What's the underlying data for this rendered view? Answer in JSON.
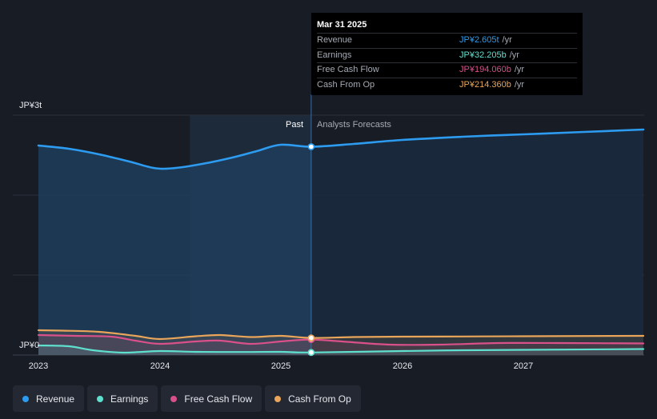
{
  "chart_data": {
    "type": "area",
    "title": "",
    "ylabel": "",
    "xlabel": "",
    "ylim": [
      0,
      3000
    ],
    "y_ticks": [
      "JP¥3t",
      "JP¥0"
    ],
    "x_tick_labels": [
      "2023",
      "2024",
      "2025",
      "2026",
      "2027"
    ],
    "divider_x": 2025.25,
    "highlight_start_x": 2024.25,
    "past_label": "Past",
    "forecast_label": "Analysts Forecasts",
    "series": [
      {
        "name": "Revenue",
        "unit": "JP¥ billions",
        "color": "#2d9cf0",
        "points": [
          [
            2023.0,
            2620
          ],
          [
            2023.25,
            2580
          ],
          [
            2023.5,
            2510
          ],
          [
            2023.75,
            2420
          ],
          [
            2023.95,
            2340
          ],
          [
            2024.1,
            2335
          ],
          [
            2024.35,
            2390
          ],
          [
            2024.6,
            2470
          ],
          [
            2024.8,
            2550
          ],
          [
            2025.0,
            2630
          ],
          [
            2025.25,
            2605
          ],
          [
            2025.6,
            2640
          ],
          [
            2026.0,
            2690
          ],
          [
            2026.5,
            2730
          ],
          [
            2027.0,
            2760
          ],
          [
            2027.5,
            2790
          ],
          [
            2027.99,
            2820
          ]
        ]
      },
      {
        "name": "Earnings",
        "unit": "JP¥ billions",
        "color": "#5fe0cf",
        "points": [
          [
            2023.0,
            120
          ],
          [
            2023.25,
            110
          ],
          [
            2023.45,
            60
          ],
          [
            2023.7,
            30
          ],
          [
            2024.0,
            50
          ],
          [
            2024.3,
            40
          ],
          [
            2024.7,
            38
          ],
          [
            2025.0,
            40
          ],
          [
            2025.25,
            32
          ],
          [
            2026.0,
            50
          ],
          [
            2026.5,
            60
          ],
          [
            2027.0,
            65
          ],
          [
            2027.99,
            75
          ]
        ]
      },
      {
        "name": "Free Cash Flow",
        "unit": "JP¥ billions",
        "color": "#d9508a",
        "points": [
          [
            2023.0,
            250
          ],
          [
            2023.3,
            240
          ],
          [
            2023.6,
            230
          ],
          [
            2023.8,
            180
          ],
          [
            2024.0,
            140
          ],
          [
            2024.3,
            170
          ],
          [
            2024.5,
            180
          ],
          [
            2024.75,
            140
          ],
          [
            2025.0,
            170
          ],
          [
            2025.25,
            194
          ],
          [
            2025.5,
            170
          ],
          [
            2025.9,
            130
          ],
          [
            2026.3,
            130
          ],
          [
            2026.8,
            150
          ],
          [
            2027.3,
            150
          ],
          [
            2027.99,
            145
          ]
        ]
      },
      {
        "name": "Cash From Op",
        "unit": "JP¥ billions",
        "color": "#e9a55a",
        "points": [
          [
            2023.0,
            310
          ],
          [
            2023.2,
            305
          ],
          [
            2023.5,
            290
          ],
          [
            2023.8,
            240
          ],
          [
            2024.0,
            200
          ],
          [
            2024.3,
            235
          ],
          [
            2024.5,
            250
          ],
          [
            2024.75,
            225
          ],
          [
            2025.0,
            240
          ],
          [
            2025.25,
            214
          ],
          [
            2025.6,
            225
          ],
          [
            2026.0,
            230
          ],
          [
            2026.5,
            232
          ],
          [
            2027.0,
            235
          ],
          [
            2027.99,
            240
          ]
        ]
      }
    ]
  },
  "tooltip": {
    "date": "Mar 31 2025",
    "rows": [
      {
        "label": "Revenue",
        "value": "JP¥2.605t",
        "unit": "/yr",
        "color": "#2d9cf0"
      },
      {
        "label": "Earnings",
        "value": "JP¥32.205b",
        "unit": "/yr",
        "color": "#5fe0cf"
      },
      {
        "label": "Free Cash Flow",
        "value": "JP¥194.060b",
        "unit": "/yr",
        "color": "#d9508a"
      },
      {
        "label": "Cash From Op",
        "value": "JP¥214.360b",
        "unit": "/yr",
        "color": "#e9a55a"
      }
    ]
  },
  "legend": [
    {
      "label": "Revenue",
      "color": "#2d9cf0"
    },
    {
      "label": "Earnings",
      "color": "#5fe0cf"
    },
    {
      "label": "Free Cash Flow",
      "color": "#d9508a"
    },
    {
      "label": "Cash From Op",
      "color": "#e9a55a"
    }
  ]
}
